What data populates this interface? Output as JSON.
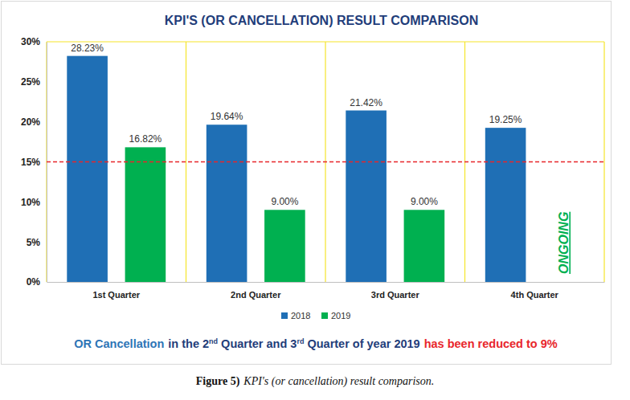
{
  "chart_data": {
    "type": "bar",
    "title": "KPI'S (OR CANCELLATION) RESULT COMPARISON",
    "categories": [
      "1st Quarter",
      "2nd Quarter",
      "3rd Quarter",
      "4th Quarter"
    ],
    "series": [
      {
        "name": "2018",
        "color": "#1f6fb5",
        "values": [
          28.23,
          19.64,
          21.42,
          19.25
        ],
        "value_labels": [
          "28.23%",
          "19.64%",
          "21.42%",
          "19.25%"
        ]
      },
      {
        "name": "2019",
        "color": "#00b050",
        "values": [
          16.82,
          9.0,
          9.0,
          null
        ],
        "value_labels": [
          "16.82%",
          "9.00%",
          "9.00%",
          null
        ]
      }
    ],
    "ylim": [
      0,
      30
    ],
    "yticks": [
      {
        "value": 0,
        "label": "0%"
      },
      {
        "value": 5,
        "label": "5%"
      },
      {
        "value": 10,
        "label": "10%"
      },
      {
        "value": 15,
        "label": "15%"
      },
      {
        "value": 20,
        "label": "20%"
      },
      {
        "value": 25,
        "label": "25%"
      },
      {
        "value": 30,
        "label": "30%"
      }
    ],
    "grid": false,
    "legend": "bottom",
    "data_labels": true,
    "reference_lines": [
      {
        "value": 15,
        "color": "#e8262b",
        "line_style": "dashed"
      }
    ],
    "annotations": [
      {
        "text": "ONGOING",
        "category": "4th Quarter",
        "series": "2019",
        "color": "#00b050"
      }
    ],
    "note": [
      {
        "text": "OR Cancellation",
        "color": "#2e75b6"
      },
      {
        "text": "in the 2nd Quarter and 3rd Quarter of year 2019",
        "color": "#1f3d7a"
      },
      {
        "text": "has been reduced to 9%",
        "color": "#e8262b"
      }
    ],
    "caption": {
      "label": "Figure 5)",
      "text": "KPI's (or cancellation) result comparison."
    }
  }
}
